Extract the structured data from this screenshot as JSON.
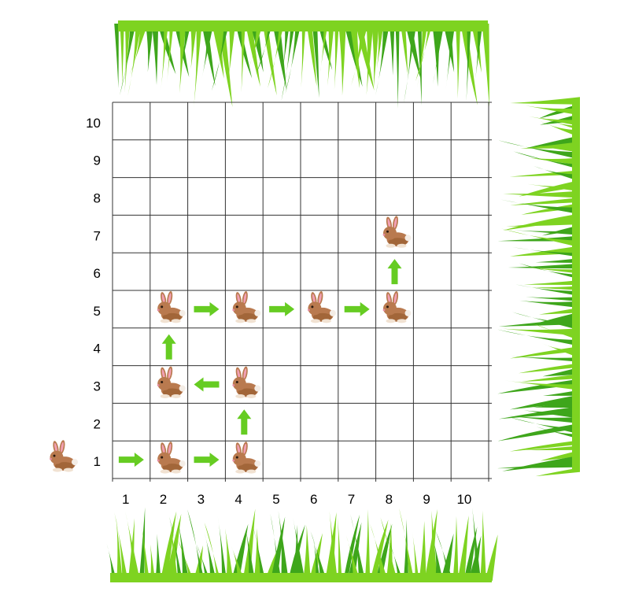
{
  "grid": {
    "cols": 10,
    "rows": 10,
    "x_labels": [
      "1",
      "2",
      "3",
      "4",
      "5",
      "6",
      "7",
      "8",
      "9",
      "10"
    ],
    "y_labels": [
      "1",
      "2",
      "3",
      "4",
      "5",
      "6",
      "7",
      "8",
      "9",
      "10"
    ],
    "line_color": "#333333"
  },
  "colors": {
    "arrow": "#66cc22",
    "grass_light": "#7ed321",
    "grass_dark": "#3ea61b",
    "rabbit_body": "#b97a4f",
    "rabbit_dark": "#8a5533",
    "rabbit_ear": "#f2a0b4"
  },
  "start_rabbit": {
    "row": 1,
    "icon": "rabbit-icon"
  },
  "rabbits": [
    {
      "col": 2,
      "row": 1
    },
    {
      "col": 4,
      "row": 1
    },
    {
      "col": 4,
      "row": 3
    },
    {
      "col": 2,
      "row": 3
    },
    {
      "col": 2,
      "row": 5
    },
    {
      "col": 4,
      "row": 5
    },
    {
      "col": 6,
      "row": 5
    },
    {
      "col": 8,
      "row": 5
    },
    {
      "col": 8,
      "row": 7
    }
  ],
  "arrows": [
    {
      "col": 1,
      "row": 1,
      "dir": "right"
    },
    {
      "col": 3,
      "row": 1,
      "dir": "right"
    },
    {
      "col": 4,
      "row": 2,
      "dir": "up"
    },
    {
      "col": 3,
      "row": 3,
      "dir": "left"
    },
    {
      "col": 2,
      "row": 4,
      "dir": "up"
    },
    {
      "col": 3,
      "row": 5,
      "dir": "right"
    },
    {
      "col": 5,
      "row": 5,
      "dir": "right"
    },
    {
      "col": 7,
      "row": 5,
      "dir": "right"
    },
    {
      "col": 8,
      "row": 6,
      "dir": "up"
    }
  ],
  "grass_patches": [
    {
      "name": "grass-top",
      "icon": "grass-icon"
    },
    {
      "name": "grass-right",
      "icon": "grass-icon"
    },
    {
      "name": "grass-bottom",
      "icon": "grass-icon"
    }
  ]
}
